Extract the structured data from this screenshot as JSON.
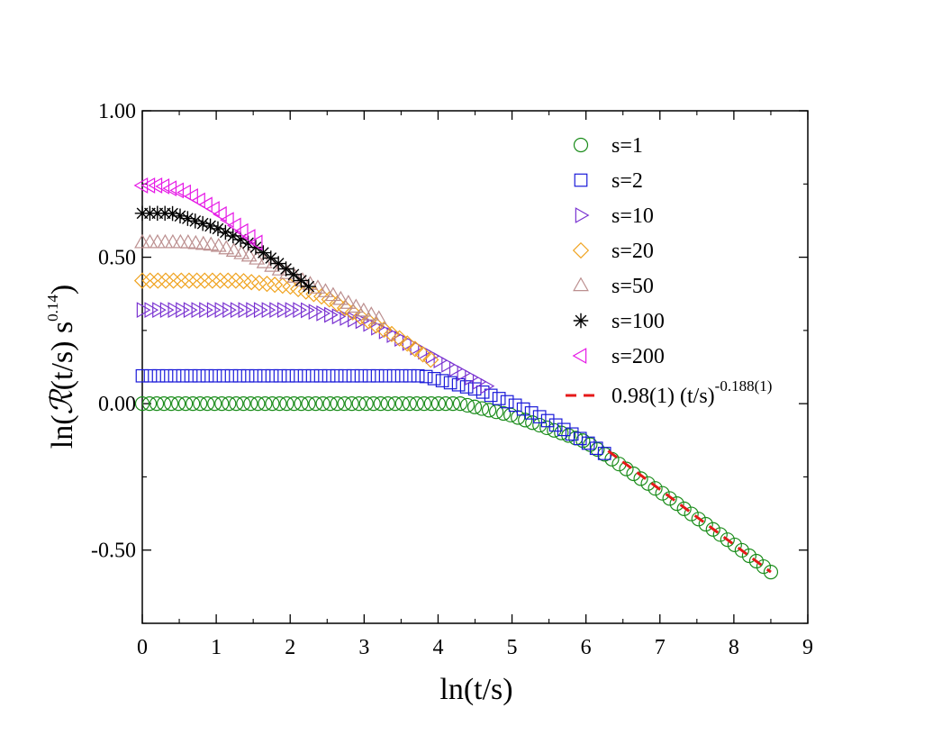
{
  "chart_data": {
    "type": "scatter",
    "title": "",
    "xlabel": "ln(t/s)",
    "ylabel": {
      "prefix": "ln(",
      "symbol": "ℛ",
      "middle": "(t/s) s",
      "exponent": "0.14",
      "suffix": ")"
    },
    "xlim": [
      0,
      9
    ],
    "ylim": [
      -0.75,
      1.0
    ],
    "x_ticks": [
      0,
      1,
      2,
      3,
      4,
      5,
      6,
      7,
      8,
      9
    ],
    "x_tick_labels": [
      "0",
      "1",
      "2",
      "3",
      "4",
      "5",
      "6",
      "7",
      "8",
      "9"
    ],
    "y_ticks": [
      -0.5,
      0.0,
      0.5,
      1.0
    ],
    "y_tick_labels": [
      "-0.50",
      "0.00",
      "0.50",
      "1.00"
    ],
    "grid": false,
    "legend_position": "top-right",
    "series": [
      {
        "name": "s=1",
        "marker": "circle",
        "color": "#1a8c1a",
        "x_range": [
          0,
          8.5
        ],
        "count": 88,
        "plateau": 0.0,
        "plateau_end": 4.3,
        "decay": [
          [
            4.3,
            0.0
          ],
          [
            5.0,
            -0.04
          ],
          [
            6.0,
            -0.13
          ],
          [
            7.0,
            -0.3
          ],
          [
            8.0,
            -0.48
          ],
          [
            8.5,
            -0.575
          ]
        ]
      },
      {
        "name": "s=2",
        "marker": "square",
        "color": "#1a1ad9",
        "x_range": [
          0,
          6.25
        ],
        "count": 58,
        "plateau": 0.095,
        "plateau_end": 3.8,
        "decay": [
          [
            3.8,
            0.095
          ],
          [
            4.5,
            0.05
          ],
          [
            5.0,
            0.0
          ],
          [
            5.5,
            -0.06
          ],
          [
            6.0,
            -0.13
          ],
          [
            6.25,
            -0.17
          ]
        ]
      },
      {
        "name": "s=10",
        "marker": "triangle-right",
        "color": "#7a33d1",
        "x_range": [
          0,
          4.65
        ],
        "count": 45,
        "plateau": 0.32,
        "plateau_end": 2.2,
        "decay": [
          [
            2.2,
            0.32
          ],
          [
            3.0,
            0.28
          ],
          [
            3.5,
            0.22
          ],
          [
            4.0,
            0.15
          ],
          [
            4.65,
            0.06
          ]
        ]
      },
      {
        "name": "s=20",
        "marker": "diamond",
        "color": "#f0a31f",
        "x_range": [
          0,
          3.9
        ],
        "count": 38,
        "plateau": 0.42,
        "plateau_end": 1.3,
        "decay": [
          [
            1.3,
            0.42
          ],
          [
            2.0,
            0.4
          ],
          [
            2.5,
            0.36
          ],
          [
            3.0,
            0.29
          ],
          [
            3.5,
            0.22
          ],
          [
            3.9,
            0.15
          ]
        ]
      },
      {
        "name": "s=50",
        "marker": "triangle-up",
        "color": "#bc8f8f",
        "x_range": [
          0,
          3.2
        ],
        "count": 32,
        "plateau": 0.55,
        "plateau_end": 0.6,
        "decay": [
          [
            0.6,
            0.55
          ],
          [
            1.0,
            0.54
          ],
          [
            1.5,
            0.5
          ],
          [
            2.0,
            0.44
          ],
          [
            2.5,
            0.38
          ],
          [
            3.2,
            0.29
          ]
        ]
      },
      {
        "name": "s=100",
        "marker": "asterisk",
        "color": "#000000",
        "x_range": [
          0,
          2.25
        ],
        "count": 23,
        "plateau": 0.65,
        "plateau_end": 0.4,
        "decay": [
          [
            0.4,
            0.65
          ],
          [
            1.0,
            0.6
          ],
          [
            1.5,
            0.54
          ],
          [
            2.0,
            0.45
          ],
          [
            2.25,
            0.4
          ]
        ]
      },
      {
        "name": "s=200",
        "marker": "triangle-left",
        "color": "#e619e6",
        "x_range": [
          0,
          1.55
        ],
        "count": 17,
        "plateau": 0.745,
        "plateau_end": 0.25,
        "decay": [
          [
            0.25,
            0.745
          ],
          [
            0.6,
            0.72
          ],
          [
            1.0,
            0.66
          ],
          [
            1.3,
            0.6
          ],
          [
            1.55,
            0.55
          ]
        ]
      }
    ],
    "fit": {
      "name": "0.98(1) (t/s)",
      "exponent": "-0.188(1)",
      "style": "dashed",
      "color": "#e61919",
      "x": [
        6.3,
        8.5
      ],
      "slope": -0.188,
      "intercept": 1.0
    }
  }
}
